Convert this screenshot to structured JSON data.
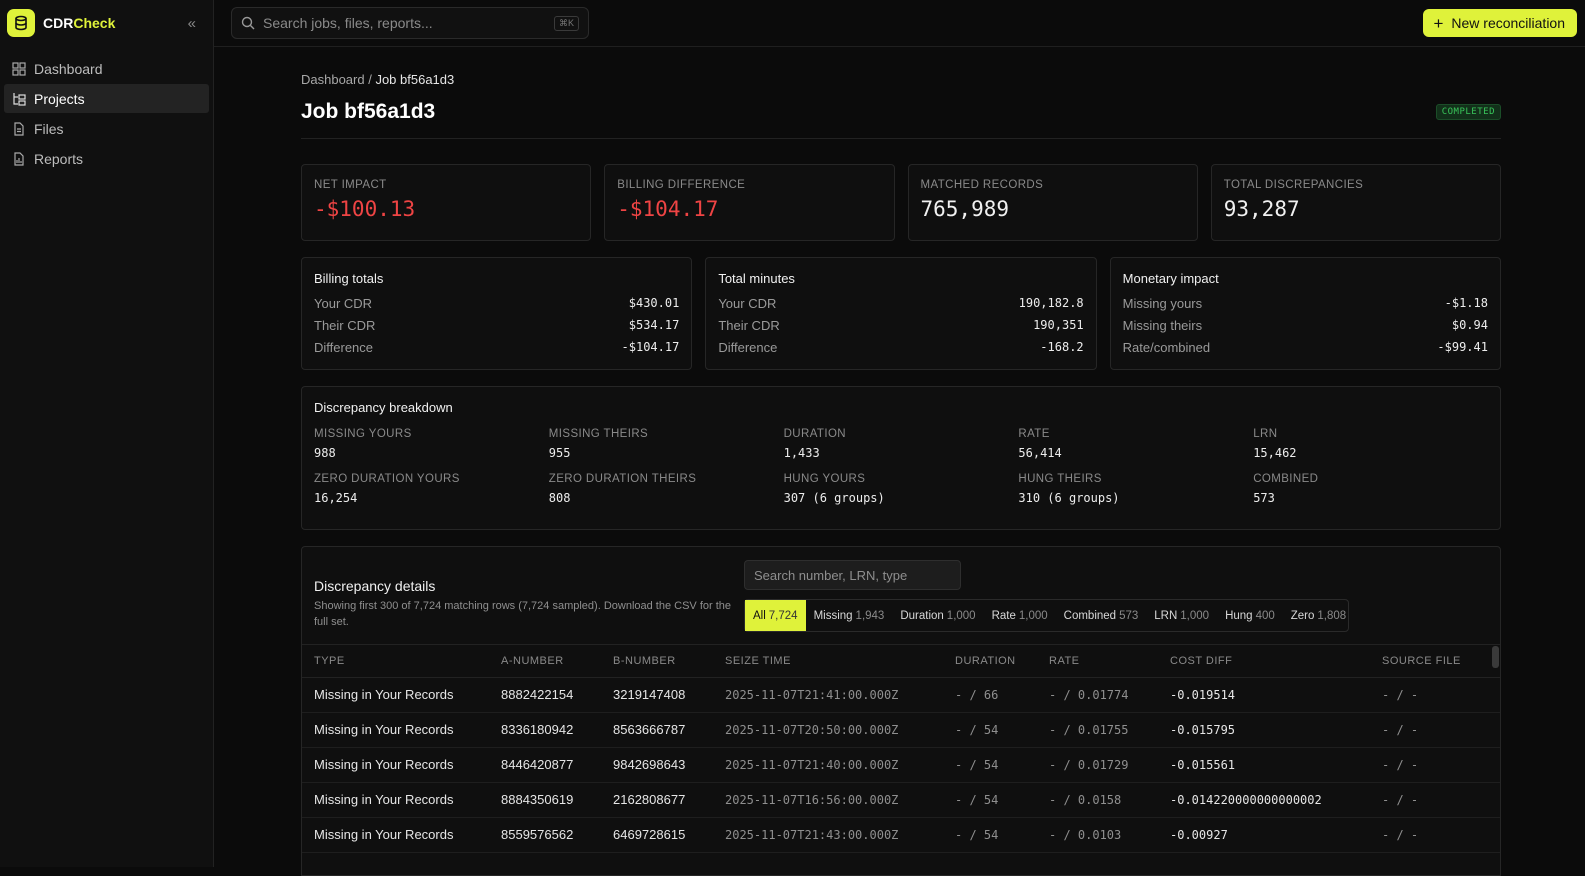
{
  "brand": {
    "prefix": "CDR",
    "accent": "Check"
  },
  "nav": [
    {
      "label": "Dashboard",
      "icon": "grid-icon"
    },
    {
      "label": "Projects",
      "icon": "tree-icon",
      "active": true
    },
    {
      "label": "Files",
      "icon": "file-icon"
    },
    {
      "label": "Reports",
      "icon": "report-icon"
    }
  ],
  "search": {
    "placeholder": "Search jobs, files, reports...",
    "shortcut": "⌘K"
  },
  "new_button": "New reconciliation",
  "breadcrumb": {
    "root": "Dashboard",
    "sep": " / ",
    "current": "Job bf56a1d3"
  },
  "page_title": "Job bf56a1d3",
  "status": "COMPLETED",
  "kpis": [
    {
      "label": "NET IMPACT",
      "value": "-$100.13",
      "negative": true
    },
    {
      "label": "BILLING DIFFERENCE",
      "value": "-$104.17",
      "negative": true
    },
    {
      "label": "MATCHED RECORDS",
      "value": "765,989"
    },
    {
      "label": "TOTAL DISCREPANCIES",
      "value": "93,287"
    }
  ],
  "summaries": [
    {
      "title": "Billing totals",
      "rows": [
        [
          "Your CDR",
          "$430.01"
        ],
        [
          "Their CDR",
          "$534.17"
        ],
        [
          "Difference",
          "-$104.17"
        ]
      ]
    },
    {
      "title": "Total minutes",
      "rows": [
        [
          "Your CDR",
          "190,182.8"
        ],
        [
          "Their CDR",
          "190,351"
        ],
        [
          "Difference",
          "-168.2"
        ]
      ]
    },
    {
      "title": "Monetary impact",
      "rows": [
        [
          "Missing yours",
          "-$1.18"
        ],
        [
          "Missing theirs",
          "$0.94"
        ],
        [
          "Rate/combined",
          "-$99.41"
        ]
      ]
    }
  ],
  "breakdown": {
    "title": "Discrepancy breakdown",
    "items": [
      {
        "label": "MISSING YOURS",
        "value": "988"
      },
      {
        "label": "MISSING THEIRS",
        "value": "955"
      },
      {
        "label": "DURATION",
        "value": "1,433"
      },
      {
        "label": "RATE",
        "value": "56,414"
      },
      {
        "label": "LRN",
        "value": "15,462"
      },
      {
        "label": "ZERO DURATION YOURS",
        "value": "16,254"
      },
      {
        "label": "ZERO DURATION THEIRS",
        "value": "808"
      },
      {
        "label": "HUNG YOURS",
        "value": "307 (6 groups)"
      },
      {
        "label": "HUNG THEIRS",
        "value": "310 (6 groups)"
      },
      {
        "label": "COMBINED",
        "value": "573"
      }
    ]
  },
  "details": {
    "title": "Discrepancy details",
    "subtitle": "Showing first 300 of 7,724 matching rows (7,724 sampled). Download the CSV for the full set.",
    "filter_placeholder": "Search number, LRN, type",
    "filters": [
      {
        "label": "All",
        "count": "7,724",
        "active": true
      },
      {
        "label": "Missing",
        "count": "1,943"
      },
      {
        "label": "Duration",
        "count": "1,000"
      },
      {
        "label": "Rate",
        "count": "1,000"
      },
      {
        "label": "Combined",
        "count": "573"
      },
      {
        "label": "LRN",
        "count": "1,000"
      },
      {
        "label": "Hung",
        "count": "400"
      },
      {
        "label": "Zero",
        "count": "1,808"
      }
    ],
    "columns": [
      "TYPE",
      "A-NUMBER",
      "B-NUMBER",
      "SEIZE TIME",
      "DURATION",
      "RATE",
      "COST DIFF",
      "SOURCE FILE"
    ],
    "rows": [
      [
        "Missing in Your Records",
        "8882422154",
        "3219147408",
        "2025-11-07T21:41:00.000Z",
        "- / 66",
        "- / 0.01774",
        "-0.019514",
        "- / -"
      ],
      [
        "Missing in Your Records",
        "8336180942",
        "8563666787",
        "2025-11-07T20:50:00.000Z",
        "- / 54",
        "- / 0.01755",
        "-0.015795",
        "- / -"
      ],
      [
        "Missing in Your Records",
        "8446420877",
        "9842698643",
        "2025-11-07T21:40:00.000Z",
        "- / 54",
        "- / 0.01729",
        "-0.015561",
        "- / -"
      ],
      [
        "Missing in Your Records",
        "8884350619",
        "2162808677",
        "2025-11-07T16:56:00.000Z",
        "- / 54",
        "- / 0.0158",
        "-0.014220000000000002",
        "- / -"
      ],
      [
        "Missing in Your Records",
        "8559576562",
        "6469728615",
        "2025-11-07T21:43:00.000Z",
        "- / 54",
        "- / 0.0103",
        "-0.00927",
        "- / -"
      ]
    ]
  },
  "colors": {
    "accent": "#dff23a",
    "negative": "#ef4444",
    "success": "#39c55a"
  }
}
